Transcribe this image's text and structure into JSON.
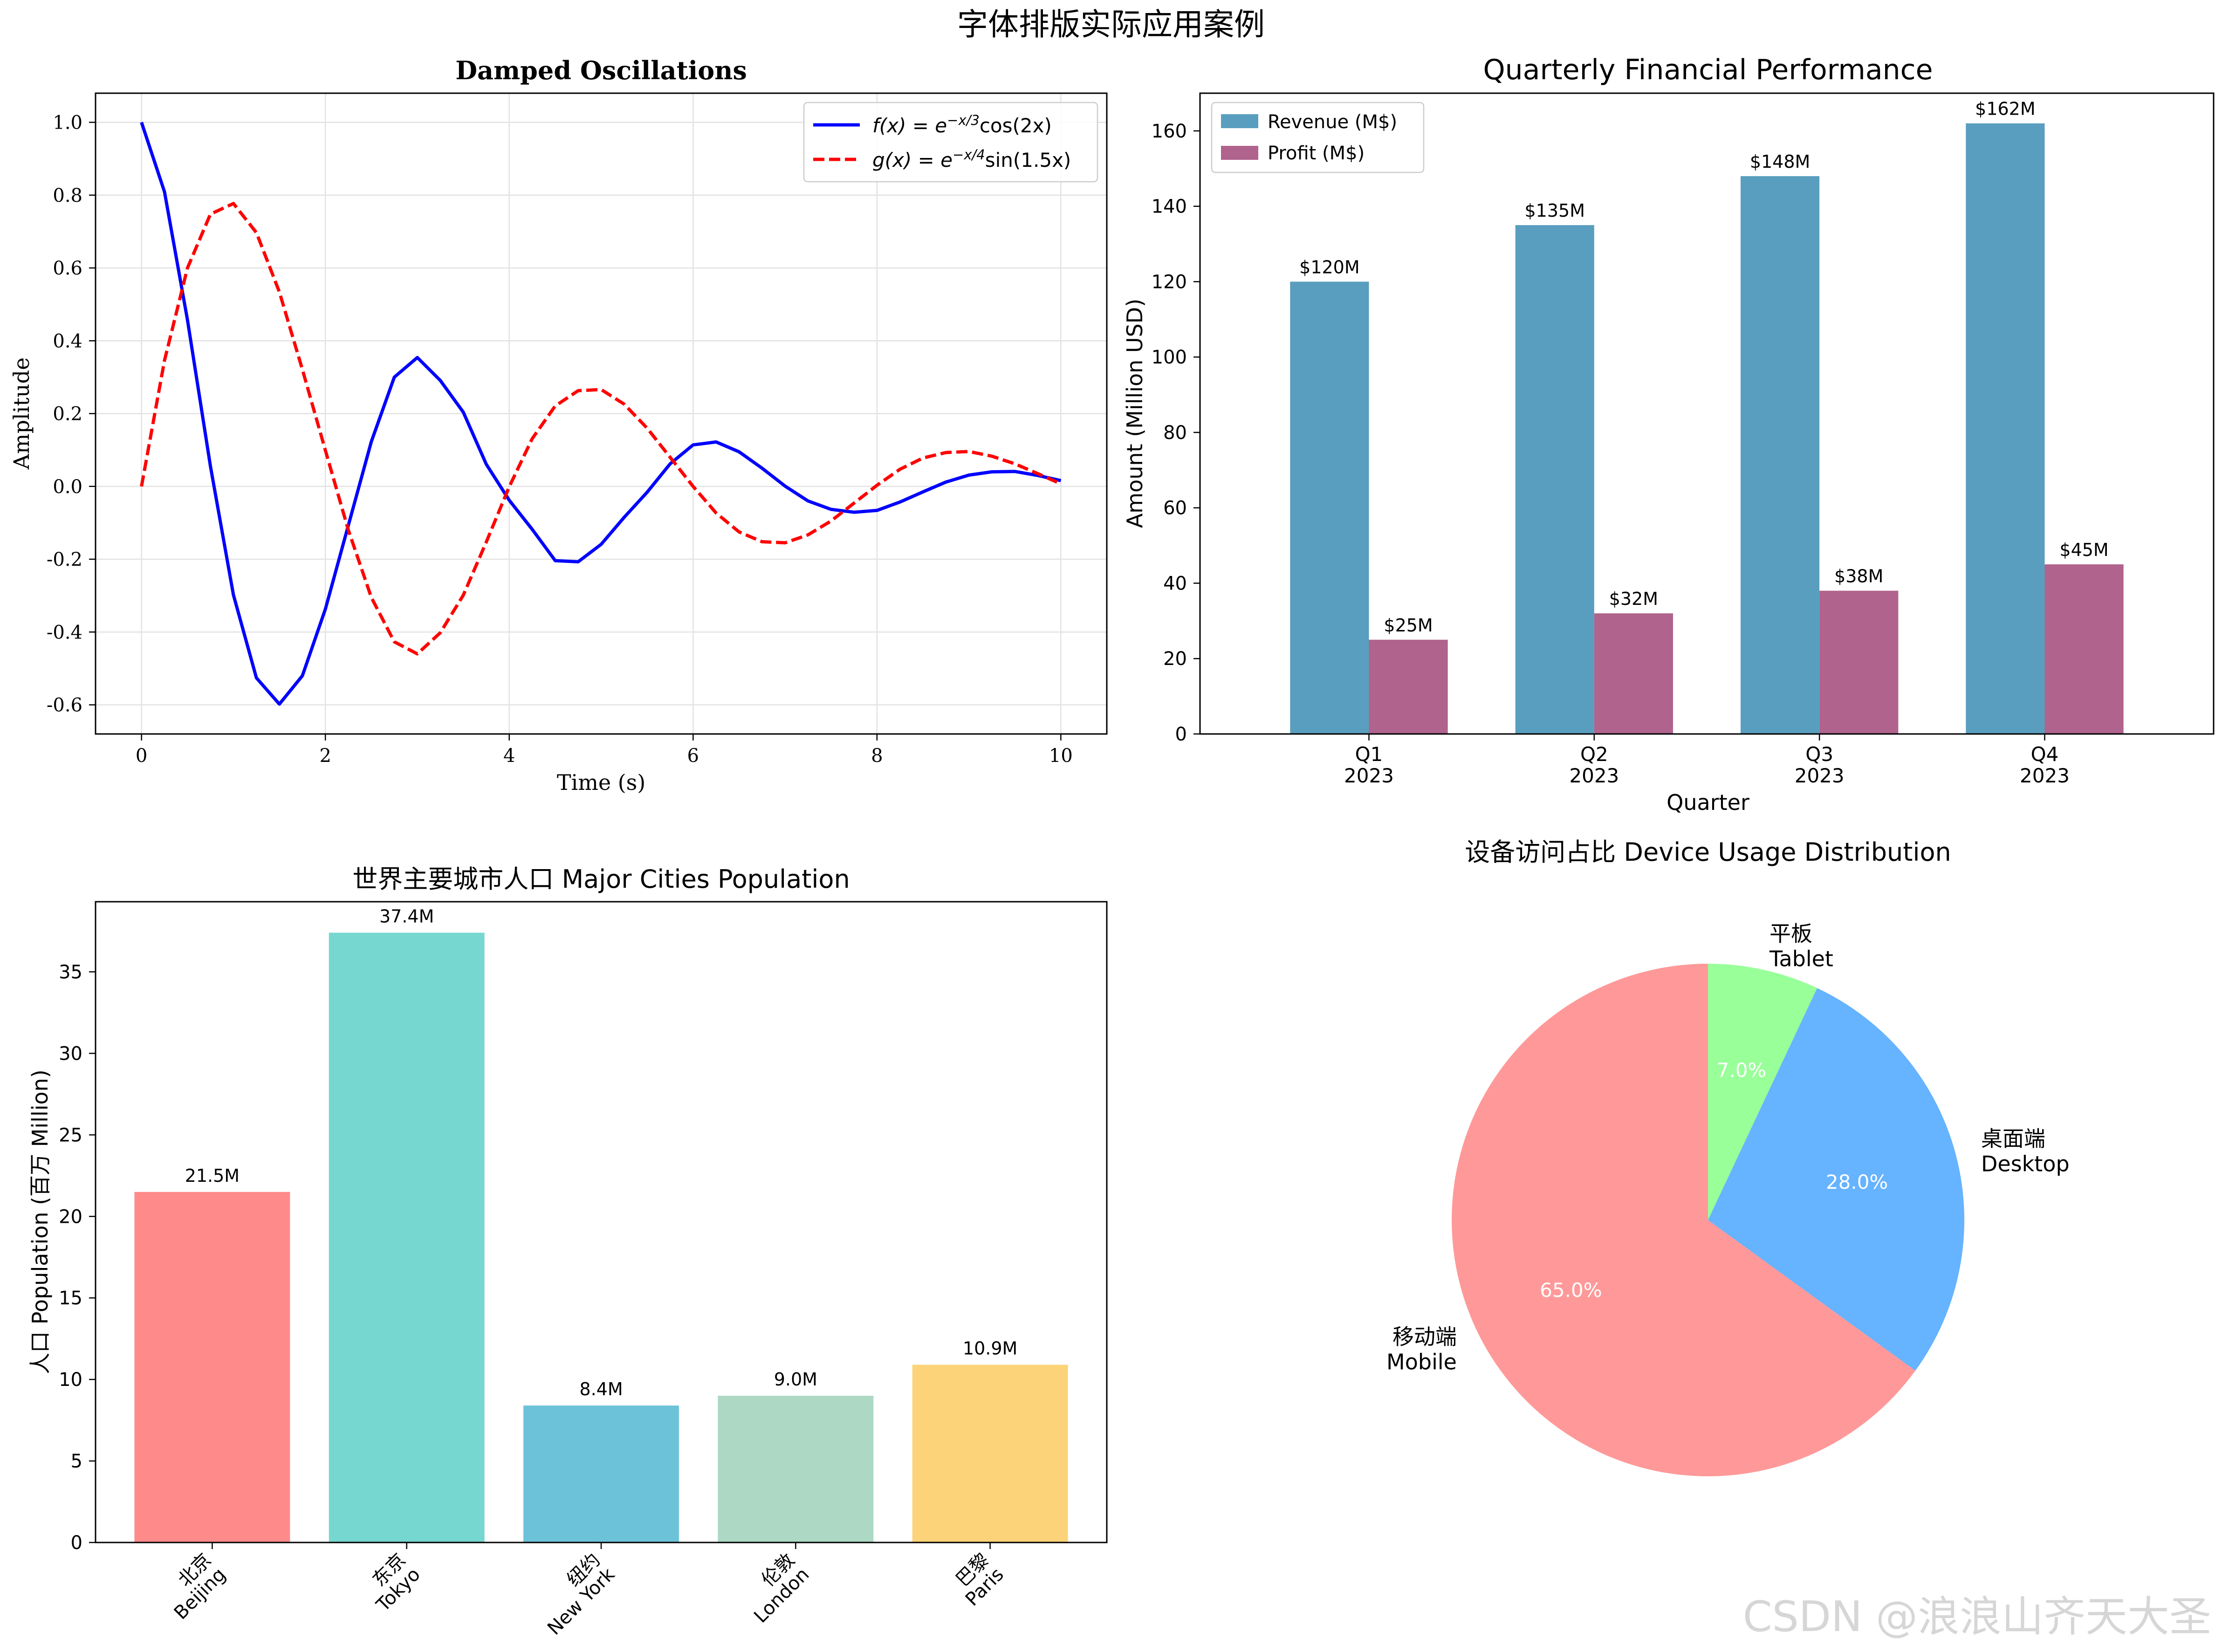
{
  "figure": {
    "title": "字体排版实际应用案例",
    "watermark": "CSDN @浪浪山齐天大圣"
  },
  "chart_data": [
    {
      "type": "line",
      "title": "Damped Oscillations",
      "xlabel": "Time (s)",
      "ylabel": "Amplitude",
      "xlim": [
        -0.5,
        10.5
      ],
      "ylim": [
        -0.68,
        1.08
      ],
      "xticks": [
        0,
        2,
        4,
        6,
        8,
        10
      ],
      "yticks": [
        -0.6,
        -0.4,
        -0.2,
        0.0,
        0.2,
        0.4,
        0.6,
        0.8,
        1.0
      ],
      "xtick_labels": [
        "0",
        "2",
        "4",
        "6",
        "8",
        "10"
      ],
      "ytick_labels": [
        "-0.6",
        "-0.4",
        "-0.2",
        "0.0",
        "0.2",
        "0.4",
        "0.6",
        "0.8",
        "1.0"
      ],
      "grid": true,
      "legend_position": "upper right",
      "series": [
        {
          "name": "f(x) = e^{-x/3} cos(2x)",
          "legend_lhs": "f(x) = e",
          "legend_exp": "−x/3",
          "legend_rhs": "cos(2x)",
          "color": "#0000ff",
          "style": "solid",
          "x": [
            0,
            0.25,
            0.5,
            0.75,
            1,
            1.25,
            1.5,
            1.75,
            2,
            2.25,
            2.5,
            2.75,
            3,
            3.25,
            3.5,
            3.75,
            4,
            4.25,
            4.5,
            4.75,
            5,
            5.25,
            5.5,
            5.75,
            6,
            6.25,
            6.5,
            6.75,
            7,
            7.25,
            7.5,
            7.75,
            8,
            8.25,
            8.5,
            8.75,
            9,
            9.25,
            9.5,
            9.75,
            10
          ],
          "y": [
            1.0,
            0.809,
            0.457,
            0.055,
            -0.298,
            -0.526,
            -0.598,
            -0.52,
            -0.337,
            -0.107,
            0.123,
            0.3,
            0.354,
            0.291,
            0.204,
            0.061,
            -0.038,
            -0.118,
            -0.204,
            -0.207,
            -0.159,
            -0.085,
            -0.016,
            0.062,
            0.114,
            0.122,
            0.095,
            0.05,
            0.001,
            -0.04,
            -0.063,
            -0.071,
            -0.066,
            -0.043,
            -0.015,
            0.012,
            0.031,
            0.04,
            0.041,
            0.03,
            0.016
          ]
        },
        {
          "name": "g(x) = e^{-x/4} sin(1.5x)",
          "legend_lhs": "g(x) = e",
          "legend_exp": "−x/4",
          "legend_rhs": "sin(1.5x)",
          "color": "#ff0000",
          "style": "dashed",
          "x": [
            0,
            0.25,
            0.5,
            0.75,
            1,
            1.25,
            1.5,
            1.75,
            2,
            2.25,
            2.5,
            2.75,
            3,
            3.25,
            3.5,
            3.75,
            4,
            4.25,
            4.5,
            4.75,
            5,
            5.25,
            5.5,
            5.75,
            6,
            6.25,
            6.5,
            6.75,
            7,
            7.25,
            7.5,
            7.75,
            8,
            8.25,
            8.5,
            8.75,
            9,
            9.25,
            9.5,
            9.75,
            10
          ],
          "y": [
            0.0,
            0.346,
            0.6,
            0.748,
            0.777,
            0.697,
            0.534,
            0.321,
            0.099,
            -0.12,
            -0.305,
            -0.427,
            -0.46,
            -0.402,
            -0.299,
            -0.153,
            -0.001,
            0.131,
            0.221,
            0.263,
            0.266,
            0.226,
            0.16,
            0.08,
            0.0,
            -0.073,
            -0.125,
            -0.152,
            -0.155,
            -0.133,
            -0.095,
            -0.046,
            0.003,
            0.047,
            0.078,
            0.093,
            0.096,
            0.083,
            0.062,
            0.035,
            0.007
          ]
        }
      ]
    },
    {
      "type": "bar",
      "title": "Quarterly Financial Performance",
      "xlabel": "Quarter",
      "ylabel": "Amount (Million USD)",
      "ylim": [
        0,
        170
      ],
      "yticks": [
        0,
        20,
        40,
        60,
        80,
        100,
        120,
        140,
        160
      ],
      "categories": [
        "Q1\n2023",
        "Q2\n2023",
        "Q3\n2023",
        "Q4\n2023"
      ],
      "category_lines": [
        [
          "Q1",
          "2023"
        ],
        [
          "Q2",
          "2023"
        ],
        [
          "Q3",
          "2023"
        ],
        [
          "Q4",
          "2023"
        ]
      ],
      "legend_position": "upper left",
      "series": [
        {
          "name": "Revenue (M$)",
          "color": "#5a9ebf",
          "values": [
            120,
            135,
            148,
            162
          ],
          "labels": [
            "$120M",
            "$135M",
            "$148M",
            "$162M"
          ]
        },
        {
          "name": "Profit (M$)",
          "color": "#b0638c",
          "values": [
            25,
            32,
            38,
            45
          ],
          "labels": [
            "$25M",
            "$32M",
            "$38M",
            "$45M"
          ]
        }
      ]
    },
    {
      "type": "bar",
      "title": "世界主要城市人口 Major Cities Population",
      "xlabel": "",
      "ylabel": "人口 Population (百万 Million)",
      "ylim": [
        0,
        39.3
      ],
      "yticks": [
        0,
        5,
        10,
        15,
        20,
        25,
        30,
        35
      ],
      "categories": [
        "北京\nBeijing",
        "东京\nTokyo",
        "纽约\nNew York",
        "伦敦\nLondon",
        "巴黎\nParis"
      ],
      "category_lines": [
        [
          "北京",
          "Beijing"
        ],
        [
          "东京",
          "Tokyo"
        ],
        [
          "纽约",
          "New York"
        ],
        [
          "伦敦",
          "London"
        ],
        [
          "巴黎",
          "Paris"
        ]
      ],
      "values": [
        21.5,
        37.4,
        8.4,
        9.0,
        10.9
      ],
      "labels": [
        "21.5M",
        "37.4M",
        "8.4M",
        "9.0M",
        "10.9M"
      ],
      "colors": [
        "#ff8a8a",
        "#76d7d0",
        "#6cc3d9",
        "#acd8c4",
        "#fdd379"
      ]
    },
    {
      "type": "pie",
      "title": "设备访问占比 Device Usage Distribution",
      "slices": [
        {
          "label_zh": "移动端",
          "label_en": "Mobile",
          "value": 65.0,
          "pct_label": "65.0%",
          "color": "#ff9999"
        },
        {
          "label_zh": "桌面端",
          "label_en": "Desktop",
          "value": 28.0,
          "pct_label": "28.0%",
          "color": "#66b3ff"
        },
        {
          "label_zh": "平板",
          "label_en": "Tablet",
          "value": 7.0,
          "pct_label": "7.0%",
          "color": "#99ff99"
        }
      ]
    }
  ]
}
